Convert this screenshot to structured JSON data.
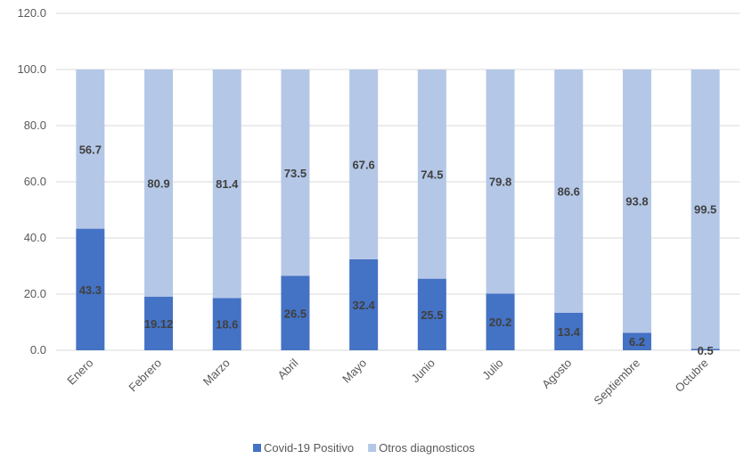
{
  "chart_data": {
    "type": "bar",
    "stacked": true,
    "categories": [
      "Enero",
      "Febrero",
      "Marzo",
      "Abril",
      "Mayo",
      "Junio",
      "Julio",
      "Agosto",
      "Septiembre",
      "Octubre"
    ],
    "series": [
      {
        "name": "Covid-19 Positivo",
        "color": "#4472c4",
        "values": [
          43.3,
          19.12,
          18.6,
          26.5,
          32.4,
          25.5,
          20.2,
          13.4,
          6.2,
          0.5
        ],
        "labels": [
          "43.3",
          "19.12",
          "18.6",
          "26.5",
          "32.4",
          "25.5",
          "20.2",
          "13.4",
          "6.2",
          "0.5"
        ]
      },
      {
        "name": "Otros diagnosticos",
        "color": "#b4c7e7",
        "values": [
          56.7,
          80.9,
          81.4,
          73.5,
          67.6,
          74.5,
          79.8,
          86.6,
          93.8,
          99.5
        ],
        "labels": [
          "56.7",
          "80.9",
          "81.4",
          "73.5",
          "67.6",
          "74.5",
          "79.8",
          "86.6",
          "93.8",
          "99.5"
        ]
      }
    ],
    "yticks": [
      "0.0",
      "20.0",
      "40.0",
      "60.0",
      "80.0",
      "100.0",
      "120.0"
    ],
    "ylim": [
      0,
      120
    ],
    "grid": true,
    "legend": "bottom"
  }
}
